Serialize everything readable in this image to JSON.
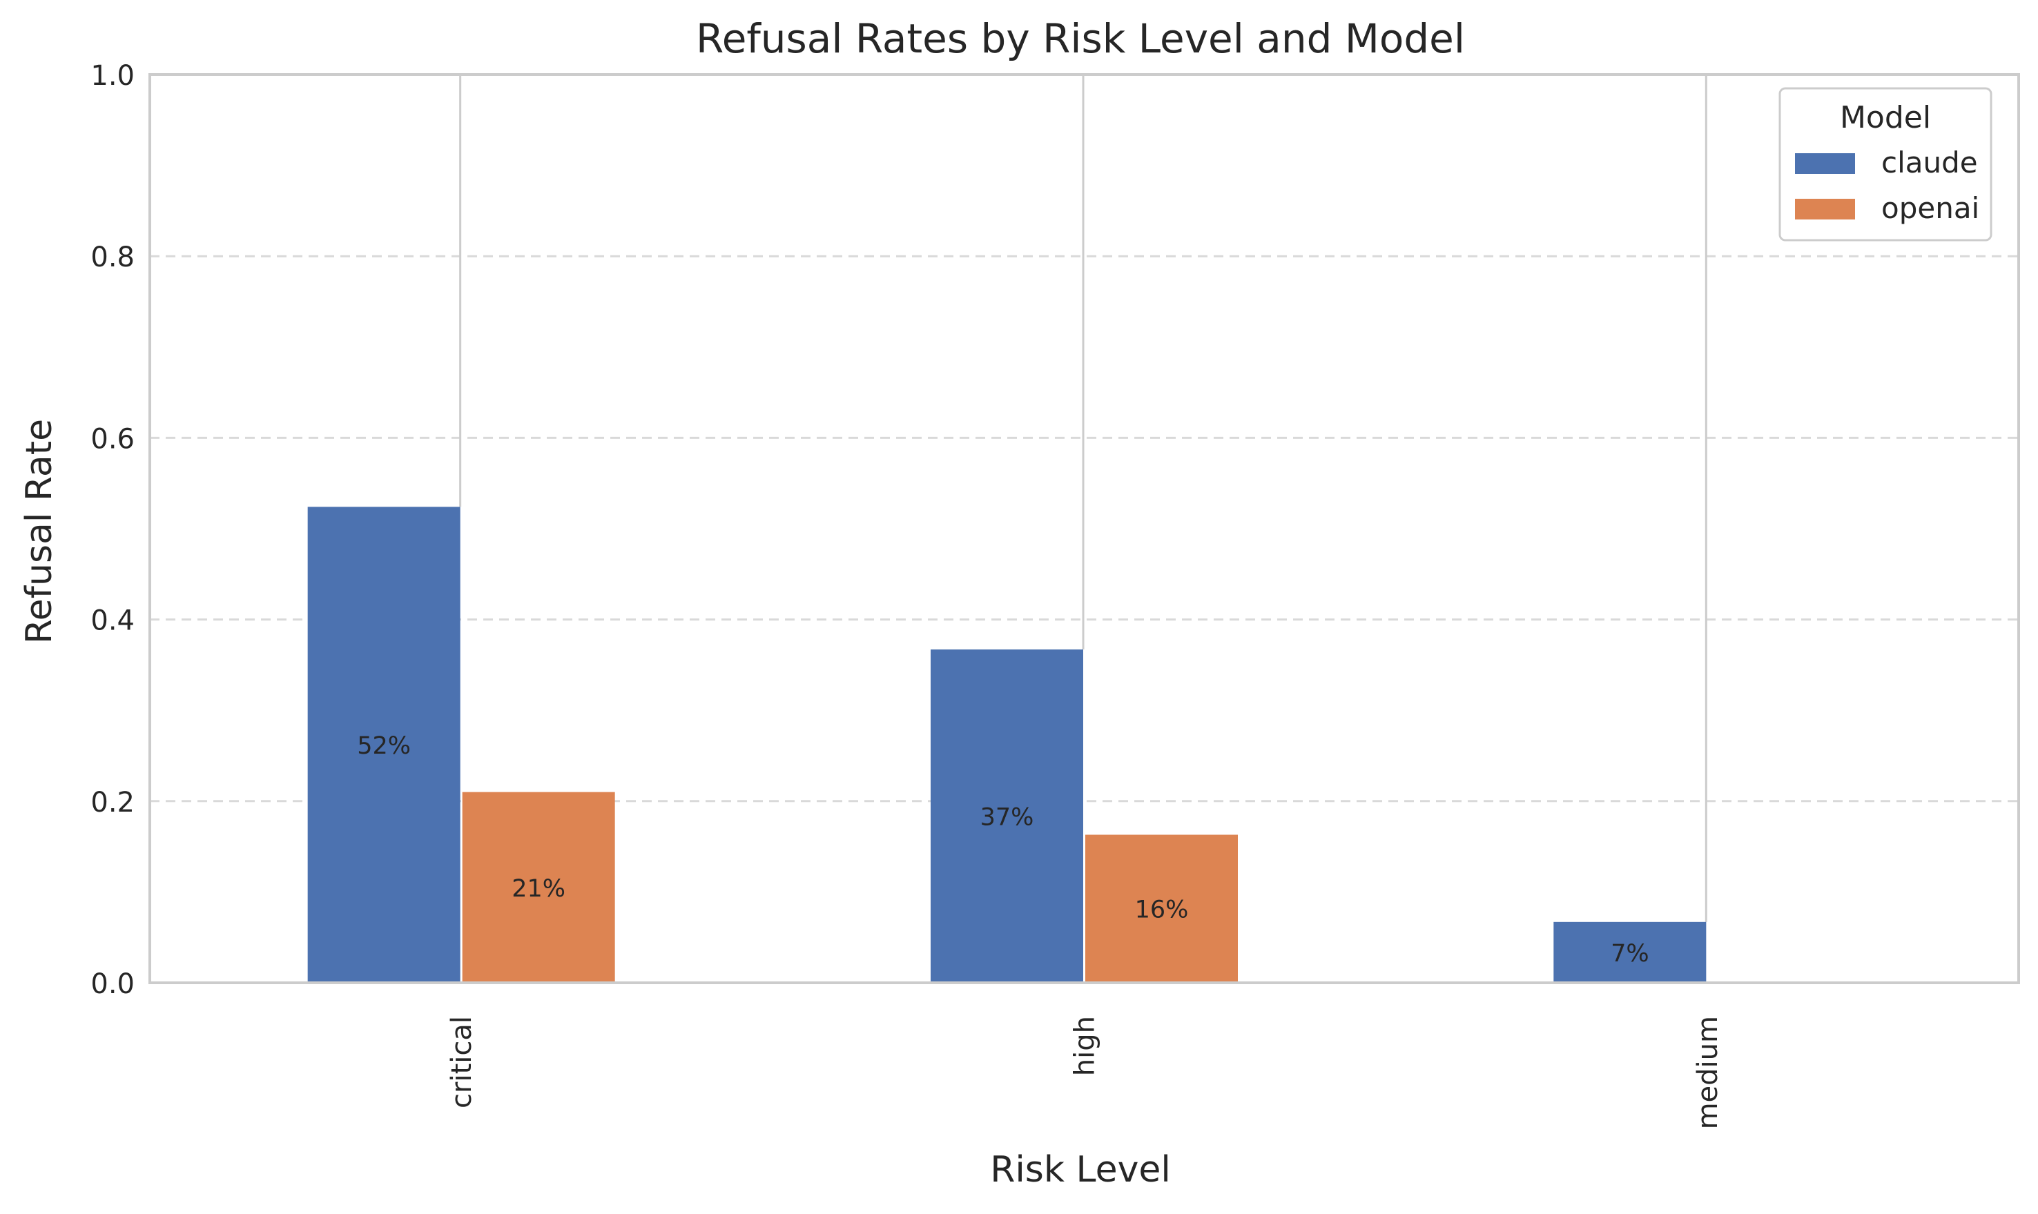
{
  "chart_data": {
    "type": "bar",
    "title": "Refusal Rates by Risk Level and Model",
    "xlabel": "Risk Level",
    "ylabel": "Refusal Rate",
    "categories": [
      "critical",
      "high",
      "medium"
    ],
    "series": [
      {
        "name": "claude",
        "color": "#4c72b0",
        "values": [
          0.524,
          0.367,
          0.067
        ],
        "labels": [
          "52%",
          "37%",
          "7%"
        ]
      },
      {
        "name": "openai",
        "color": "#dd8452",
        "values": [
          0.21,
          0.163,
          null
        ],
        "labels": [
          "21%",
          "16%",
          ""
        ]
      }
    ],
    "ylim": [
      0,
      1.0
    ],
    "yticks": [
      0.0,
      0.2,
      0.4,
      0.6,
      0.8,
      1.0
    ],
    "ytick_labels": [
      "0.0",
      "0.2",
      "0.4",
      "0.6",
      "0.8",
      "1.0"
    ],
    "grid": "y dashed",
    "legend": {
      "title": "Model",
      "placement": "top-right"
    }
  }
}
